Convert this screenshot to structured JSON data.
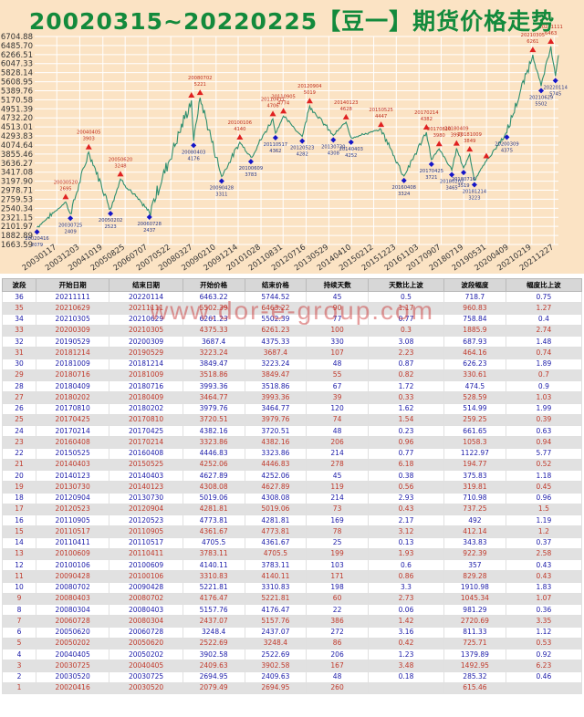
{
  "page": {
    "title": "20020315~20220225【豆一】期货价格走势",
    "watermark": "www.dor-e-group.com"
  },
  "chart_data": {
    "type": "line",
    "title": "20020315~20220225【豆一】期货价格走势",
    "y_ticks": [
      1663.59,
      1882.89,
      2101.97,
      2321.15,
      2540.34,
      2759.53,
      2978.71,
      3197.9,
      3417.08,
      3636.27,
      3855.46,
      4074.64,
      4293.83,
      4513.01,
      4732.2,
      4951.39,
      5170.58,
      5389.76,
      5608.95,
      5828.14,
      6047.33,
      6266.51,
      6485.7,
      6704.88
    ],
    "ylim": [
      1663.59,
      6704.88
    ],
    "x_ticks": [
      "20030117",
      "20031203",
      "20041019",
      "20050825",
      "20060707",
      "20070522",
      "20080327",
      "20090210",
      "20091214",
      "20101028",
      "20110831",
      "20120716",
      "20130529",
      "20140410",
      "20150212",
      "20151223",
      "20161103",
      "20170907",
      "20180719",
      "20190531",
      "20200409",
      "20210219",
      "20211227"
    ],
    "xlim": [
      "20020315",
      "20220225"
    ],
    "grid": true,
    "series": [],
    "pivots": [
      {
        "date": "20020416",
        "value": 2079,
        "kind": "low"
      },
      {
        "date": "20030520",
        "value": 2695,
        "kind": "high"
      },
      {
        "date": "20030725",
        "value": 2409,
        "kind": "low"
      },
      {
        "date": "20040405",
        "value": 3903,
        "kind": "high"
      },
      {
        "date": "20050202",
        "value": 2523,
        "kind": "low"
      },
      {
        "date": "20050620",
        "value": 3248,
        "kind": "high"
      },
      {
        "date": "20060728",
        "value": 2437,
        "kind": "low"
      },
      {
        "date": "20080304",
        "value": 5158,
        "kind": "high"
      },
      {
        "date": "20080403",
        "value": 4176,
        "kind": "low"
      },
      {
        "date": "20080702",
        "value": 5221,
        "kind": "high"
      },
      {
        "date": "20090428",
        "value": 3311,
        "kind": "low"
      },
      {
        "date": "20100106",
        "value": 4140,
        "kind": "high"
      },
      {
        "date": "20100609",
        "value": 3783,
        "kind": "low"
      },
      {
        "date": "20110411",
        "value": 4706,
        "kind": "high"
      },
      {
        "date": "20110517",
        "value": 4362,
        "kind": "low"
      },
      {
        "date": "20110905",
        "value": 4774,
        "kind": "high"
      },
      {
        "date": "20120523",
        "value": 4282,
        "kind": "low"
      },
      {
        "date": "20120904",
        "value": 5019,
        "kind": "high"
      },
      {
        "date": "20130730",
        "value": 4308,
        "kind": "low"
      },
      {
        "date": "20140123",
        "value": 4628,
        "kind": "high"
      },
      {
        "date": "20140403",
        "value": 4252,
        "kind": "low"
      },
      {
        "date": "20150525",
        "value": 4447,
        "kind": "high"
      },
      {
        "date": "20160408",
        "value": 3324,
        "kind": "low"
      },
      {
        "date": "20170214",
        "value": 4382,
        "kind": "high"
      },
      {
        "date": "20170425",
        "value": 3721,
        "kind": "low"
      },
      {
        "date": "20170810",
        "value": 3980,
        "kind": "high"
      },
      {
        "date": "20180202",
        "value": 3465,
        "kind": "low"
      },
      {
        "date": "20180409",
        "value": 3993,
        "kind": "high"
      },
      {
        "date": "20180716",
        "value": 3519,
        "kind": "low"
      },
      {
        "date": "20181009",
        "value": 3849,
        "kind": "high"
      },
      {
        "date": "20181214",
        "value": 3223,
        "kind": "low"
      },
      {
        "date": "20190529",
        "value": 3687,
        "kind": "high"
      },
      {
        "date": "20200309",
        "value": 4375,
        "kind": "low"
      },
      {
        "date": "20210305",
        "value": 6261,
        "kind": "high"
      },
      {
        "date": "20210629",
        "value": 5502,
        "kind": "low"
      },
      {
        "date": "20211111",
        "value": 6463,
        "kind": "high"
      },
      {
        "date": "20220114",
        "value": 5745,
        "kind": "low"
      },
      {
        "date": "20220225",
        "value": 6250,
        "kind": "end"
      }
    ],
    "point_labels": [
      {
        "date": "20020416",
        "text": "20020416\n2079",
        "kind": "low"
      },
      {
        "date": "20030520",
        "text": "20030520\n2695",
        "kind": "high"
      },
      {
        "date": "20030725",
        "text": "20030725\n2409",
        "kind": "low"
      },
      {
        "date": "20040405",
        "text": "20040405\n3903",
        "kind": "high"
      },
      {
        "date": "20050202",
        "text": "20050202\n2523",
        "kind": "low"
      },
      {
        "date": "20050620",
        "text": "20050620\n3248",
        "kind": "high"
      },
      {
        "date": "20060728",
        "text": "20060728\n2437",
        "kind": "low"
      },
      {
        "date": "20080702",
        "text": "20080702\n5221",
        "kind": "high"
      },
      {
        "date": "20080403",
        "text": "20080403\n4176",
        "kind": "low"
      },
      {
        "date": "20090428",
        "text": "20090428\n3311",
        "kind": "low"
      },
      {
        "date": "20100106",
        "text": "20100106\n4140",
        "kind": "high"
      },
      {
        "date": "20100609",
        "text": "20100609\n3783",
        "kind": "low"
      },
      {
        "date": "20110411",
        "text": "20110411\n4706",
        "kind": "high"
      },
      {
        "date": "20110517",
        "text": "20110517\n4362",
        "kind": "low"
      },
      {
        "date": "20110905",
        "text": "20110905\n4774",
        "kind": "high"
      },
      {
        "date": "20120523",
        "text": "20120523\n4282",
        "kind": "low"
      },
      {
        "date": "20120904",
        "text": "20120904\n5019",
        "kind": "high"
      },
      {
        "date": "20130730",
        "text": "20130730\n4308",
        "kind": "low"
      },
      {
        "date": "20140123",
        "text": "20140123\n4628",
        "kind": "high"
      },
      {
        "date": "20140403",
        "text": "20140403\n4252",
        "kind": "low"
      },
      {
        "date": "20150525",
        "text": "20150525\n4447",
        "kind": "high"
      },
      {
        "date": "20160408",
        "text": "20160408\n3324",
        "kind": "low"
      },
      {
        "date": "20170214",
        "text": "20170214\n4382",
        "kind": "high"
      },
      {
        "date": "20170425",
        "text": "20170425\n3721",
        "kind": "low"
      },
      {
        "date": "20170810",
        "text": "20170810\n3980",
        "kind": "high"
      },
      {
        "date": "20180202",
        "text": "20180202\n3465",
        "kind": "low"
      },
      {
        "date": "20180409",
        "text": "20180409\n3993",
        "kind": "high"
      },
      {
        "date": "20180716",
        "text": "20180716\n3519",
        "kind": "low"
      },
      {
        "date": "20181009",
        "text": "20181009\n3849",
        "kind": "high"
      },
      {
        "date": "20181214",
        "text": "20181214\n3223",
        "kind": "low"
      },
      {
        "date": "20200309",
        "text": "20200309\n4375",
        "kind": "low"
      },
      {
        "date": "20210305",
        "text": "20210305\n6261",
        "kind": "high"
      },
      {
        "date": "20210629",
        "text": "20210629\n5502",
        "kind": "low"
      },
      {
        "date": "20211111",
        "text": "20211111\n6463",
        "kind": "high"
      },
      {
        "date": "20220114",
        "text": "20220114\n5745",
        "kind": "low"
      }
    ],
    "colors": {
      "line": "#2f8f6f",
      "high_marker": "#e02020",
      "low_marker": "#1515c8",
      "label": "#c03020",
      "panel": "#fbe3c4",
      "grid": "#ffffff"
    }
  },
  "table": {
    "headers": [
      "波段",
      "开始日期",
      "结束日期",
      "开始价格",
      "结束价格",
      "持续天数",
      "天数比上波",
      "波段幅度",
      "幅度比上波"
    ],
    "rows": [
      [
        "36",
        "20211111",
        "20220114",
        "6463.22",
        "5744.52",
        "45",
        "0.5",
        "718.7",
        "0.75"
      ],
      [
        "35",
        "20210629",
        "20211111",
        "5502.39",
        "6463.22",
        "90",
        "1.17",
        "960.83",
        "1.27"
      ],
      [
        "34",
        "20210305",
        "20210629",
        "6261.23",
        "5502.39",
        "77",
        "0.77",
        "758.84",
        "0.4"
      ],
      [
        "33",
        "20200309",
        "20210305",
        "4375.33",
        "6261.23",
        "100",
        "0.3",
        "1885.9",
        "2.74"
      ],
      [
        "32",
        "20190529",
        "20200309",
        "3687.4",
        "4375.33",
        "330",
        "3.08",
        "687.93",
        "1.48"
      ],
      [
        "31",
        "20181214",
        "20190529",
        "3223.24",
        "3687.4",
        "107",
        "2.23",
        "464.16",
        "0.74"
      ],
      [
        "30",
        "20181009",
        "20181214",
        "3849.47",
        "3223.24",
        "48",
        "0.87",
        "626.23",
        "1.89"
      ],
      [
        "29",
        "20180716",
        "20181009",
        "3518.86",
        "3849.47",
        "55",
        "0.82",
        "330.61",
        "0.7"
      ],
      [
        "28",
        "20180409",
        "20180716",
        "3993.36",
        "3518.86",
        "67",
        "1.72",
        "474.5",
        "0.9"
      ],
      [
        "27",
        "20180202",
        "20180409",
        "3464.77",
        "3993.36",
        "39",
        "0.33",
        "528.59",
        "1.03"
      ],
      [
        "26",
        "20170810",
        "20180202",
        "3979.76",
        "3464.77",
        "120",
        "1.62",
        "514.99",
        "1.99"
      ],
      [
        "25",
        "20170425",
        "20170810",
        "3720.51",
        "3979.76",
        "74",
        "1.54",
        "259.25",
        "0.39"
      ],
      [
        "24",
        "20170214",
        "20170425",
        "4382.16",
        "3720.51",
        "48",
        "0.23",
        "661.65",
        "0.63"
      ],
      [
        "23",
        "20160408",
        "20170214",
        "3323.86",
        "4382.16",
        "206",
        "0.96",
        "1058.3",
        "0.94"
      ],
      [
        "22",
        "20150525",
        "20160408",
        "4446.83",
        "3323.86",
        "214",
        "0.77",
        "1122.97",
        "5.77"
      ],
      [
        "21",
        "20140403",
        "20150525",
        "4252.06",
        "4446.83",
        "278",
        "6.18",
        "194.77",
        "0.52"
      ],
      [
        "20",
        "20140123",
        "20140403",
        "4627.89",
        "4252.06",
        "45",
        "0.38",
        "375.83",
        "1.18"
      ],
      [
        "19",
        "20130730",
        "20140123",
        "4308.08",
        "4627.89",
        "119",
        "0.56",
        "319.81",
        "0.45"
      ],
      [
        "18",
        "20120904",
        "20130730",
        "5019.06",
        "4308.08",
        "214",
        "2.93",
        "710.98",
        "0.96"
      ],
      [
        "17",
        "20120523",
        "20120904",
        "4281.81",
        "5019.06",
        "73",
        "0.43",
        "737.25",
        "1.5"
      ],
      [
        "16",
        "20110905",
        "20120523",
        "4773.81",
        "4281.81",
        "169",
        "2.17",
        "492",
        "1.19"
      ],
      [
        "15",
        "20110517",
        "20110905",
        "4361.67",
        "4773.81",
        "78",
        "3.12",
        "412.14",
        "1.2"
      ],
      [
        "14",
        "20110411",
        "20110517",
        "4705.5",
        "4361.67",
        "25",
        "0.13",
        "343.83",
        "0.37"
      ],
      [
        "13",
        "20100609",
        "20110411",
        "3783.11",
        "4705.5",
        "199",
        "1.93",
        "922.39",
        "2.58"
      ],
      [
        "12",
        "20100106",
        "20100609",
        "4140.11",
        "3783.11",
        "103",
        "0.6",
        "357",
        "0.43"
      ],
      [
        "11",
        "20090428",
        "20100106",
        "3310.83",
        "4140.11",
        "171",
        "0.86",
        "829.28",
        "0.43"
      ],
      [
        "10",
        "20080702",
        "20090428",
        "5221.81",
        "3310.83",
        "198",
        "3.3",
        "1910.98",
        "1.83"
      ],
      [
        "9",
        "20080403",
        "20080702",
        "4176.47",
        "5221.81",
        "60",
        "2.73",
        "1045.34",
        "1.07"
      ],
      [
        "8",
        "20080304",
        "20080403",
        "5157.76",
        "4176.47",
        "22",
        "0.06",
        "981.29",
        "0.36"
      ],
      [
        "7",
        "20060728",
        "20080304",
        "2437.07",
        "5157.76",
        "386",
        "1.42",
        "2720.69",
        "3.35"
      ],
      [
        "6",
        "20050620",
        "20060728",
        "3248.4",
        "2437.07",
        "272",
        "3.16",
        "811.33",
        "1.12"
      ],
      [
        "5",
        "20050202",
        "20050620",
        "2522.69",
        "3248.4",
        "86",
        "0.42",
        "725.71",
        "0.53"
      ],
      [
        "4",
        "20040405",
        "20050202",
        "3902.58",
        "2522.69",
        "206",
        "1.23",
        "1379.89",
        "0.92"
      ],
      [
        "3",
        "20030725",
        "20040405",
        "2409.63",
        "3902.58",
        "167",
        "3.48",
        "1492.95",
        "6.23"
      ],
      [
        "2",
        "20030520",
        "20030725",
        "2694.95",
        "2409.63",
        "48",
        "0.18",
        "285.32",
        "0.46"
      ],
      [
        "1",
        "20020416",
        "20030520",
        "2079.49",
        "2694.95",
        "260",
        "",
        "615.46",
        ""
      ]
    ]
  }
}
